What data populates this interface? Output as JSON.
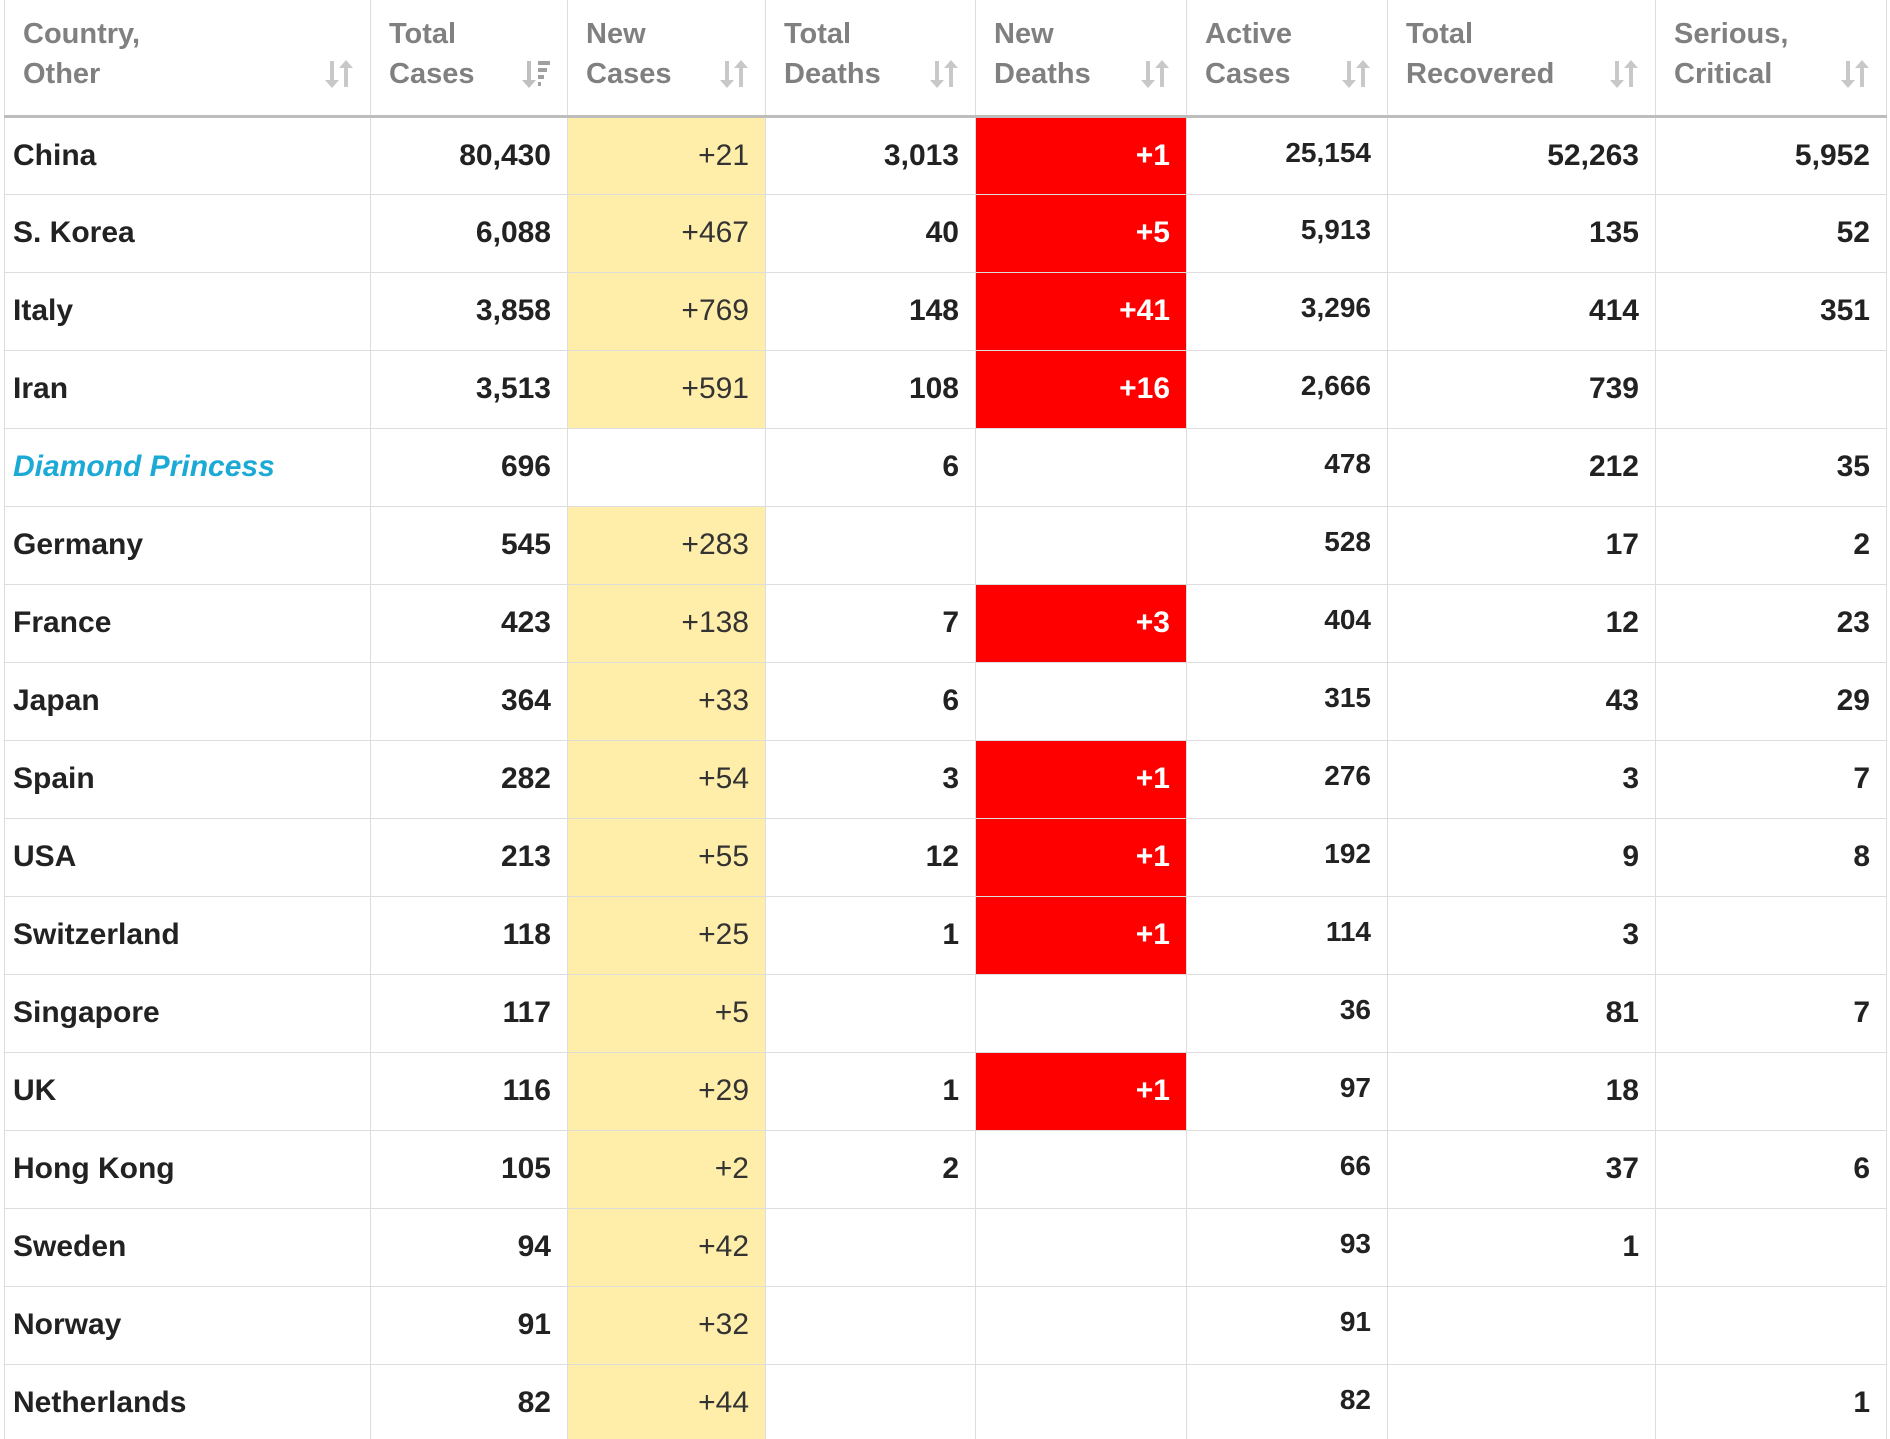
{
  "columns": [
    {
      "line1": "Country,",
      "line2": "Other",
      "sort_icon": "sort-unsorted-icon"
    },
    {
      "line1": "Total",
      "line2": "Cases",
      "sort_icon": "sort-descending-icon"
    },
    {
      "line1": "New",
      "line2": "Cases",
      "sort_icon": "sort-unsorted-icon"
    },
    {
      "line1": "Total",
      "line2": "Deaths",
      "sort_icon": "sort-unsorted-icon"
    },
    {
      "line1": "New",
      "line2": "Deaths",
      "sort_icon": "sort-unsorted-icon"
    },
    {
      "line1": "Active",
      "line2": "Cases",
      "sort_icon": "sort-unsorted-icon"
    },
    {
      "line1": "Total",
      "line2": "Recovered",
      "sort_icon": "sort-unsorted-icon"
    },
    {
      "line1": "Serious,",
      "line2": "Critical",
      "sort_icon": "sort-unsorted-icon"
    }
  ],
  "colors": {
    "new_cases_highlight": "#ffeeaa",
    "new_deaths_highlight": "#ff0000",
    "link_country": "#1ba9d6",
    "header_text": "#808080"
  },
  "rows": [
    {
      "country": "China",
      "link": false,
      "total_cases": "80,430",
      "new_cases": "+21",
      "total_deaths": "3,013",
      "new_deaths": "+1",
      "active_cases": "25,154",
      "total_recovered": "52,263",
      "serious_critical": "5,952"
    },
    {
      "country": "S. Korea",
      "link": false,
      "total_cases": "6,088",
      "new_cases": "+467",
      "total_deaths": "40",
      "new_deaths": "+5",
      "active_cases": "5,913",
      "total_recovered": "135",
      "serious_critical": "52"
    },
    {
      "country": "Italy",
      "link": false,
      "total_cases": "3,858",
      "new_cases": "+769",
      "total_deaths": "148",
      "new_deaths": "+41",
      "active_cases": "3,296",
      "total_recovered": "414",
      "serious_critical": "351"
    },
    {
      "country": "Iran",
      "link": false,
      "total_cases": "3,513",
      "new_cases": "+591",
      "total_deaths": "108",
      "new_deaths": "+16",
      "active_cases": "2,666",
      "total_recovered": "739",
      "serious_critical": ""
    },
    {
      "country": "Diamond Princess",
      "link": true,
      "total_cases": "696",
      "new_cases": "",
      "total_deaths": "6",
      "new_deaths": "",
      "active_cases": "478",
      "total_recovered": "212",
      "serious_critical": "35"
    },
    {
      "country": "Germany",
      "link": false,
      "total_cases": "545",
      "new_cases": "+283",
      "total_deaths": "",
      "new_deaths": "",
      "active_cases": "528",
      "total_recovered": "17",
      "serious_critical": "2"
    },
    {
      "country": "France",
      "link": false,
      "total_cases": "423",
      "new_cases": "+138",
      "total_deaths": "7",
      "new_deaths": "+3",
      "active_cases": "404",
      "total_recovered": "12",
      "serious_critical": "23"
    },
    {
      "country": "Japan",
      "link": false,
      "total_cases": "364",
      "new_cases": "+33",
      "total_deaths": "6",
      "new_deaths": "",
      "active_cases": "315",
      "total_recovered": "43",
      "serious_critical": "29"
    },
    {
      "country": "Spain",
      "link": false,
      "total_cases": "282",
      "new_cases": "+54",
      "total_deaths": "3",
      "new_deaths": "+1",
      "active_cases": "276",
      "total_recovered": "3",
      "serious_critical": "7"
    },
    {
      "country": "USA",
      "link": false,
      "total_cases": "213",
      "new_cases": "+55",
      "total_deaths": "12",
      "new_deaths": "+1",
      "active_cases": "192",
      "total_recovered": "9",
      "serious_critical": "8"
    },
    {
      "country": "Switzerland",
      "link": false,
      "total_cases": "118",
      "new_cases": "+25",
      "total_deaths": "1",
      "new_deaths": "+1",
      "active_cases": "114",
      "total_recovered": "3",
      "serious_critical": ""
    },
    {
      "country": "Singapore",
      "link": false,
      "total_cases": "117",
      "new_cases": "+5",
      "total_deaths": "",
      "new_deaths": "",
      "active_cases": "36",
      "total_recovered": "81",
      "serious_critical": "7"
    },
    {
      "country": "UK",
      "link": false,
      "total_cases": "116",
      "new_cases": "+29",
      "total_deaths": "1",
      "new_deaths": "+1",
      "active_cases": "97",
      "total_recovered": "18",
      "serious_critical": ""
    },
    {
      "country": "Hong Kong",
      "link": false,
      "total_cases": "105",
      "new_cases": "+2",
      "total_deaths": "2",
      "new_deaths": "",
      "active_cases": "66",
      "total_recovered": "37",
      "serious_critical": "6"
    },
    {
      "country": "Sweden",
      "link": false,
      "total_cases": "94",
      "new_cases": "+42",
      "total_deaths": "",
      "new_deaths": "",
      "active_cases": "93",
      "total_recovered": "1",
      "serious_critical": ""
    },
    {
      "country": "Norway",
      "link": false,
      "total_cases": "91",
      "new_cases": "+32",
      "total_deaths": "",
      "new_deaths": "",
      "active_cases": "91",
      "total_recovered": "",
      "serious_critical": ""
    },
    {
      "country": "Netherlands",
      "link": false,
      "total_cases": "82",
      "new_cases": "+44",
      "total_deaths": "",
      "new_deaths": "",
      "active_cases": "82",
      "total_recovered": "",
      "serious_critical": "1"
    }
  ]
}
